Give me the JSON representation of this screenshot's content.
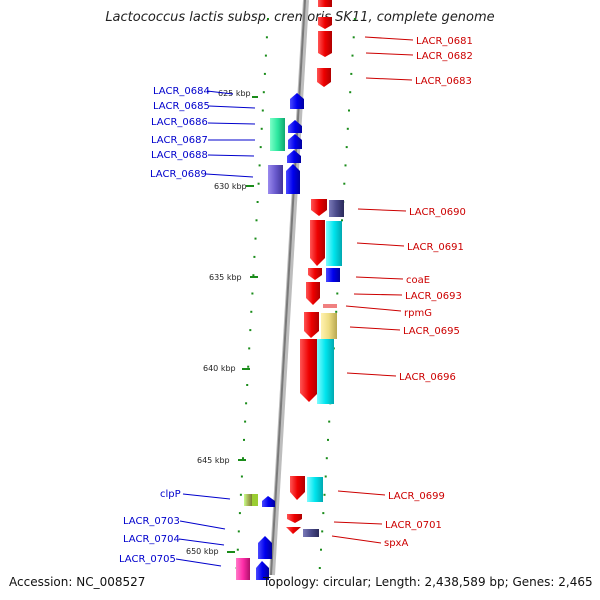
{
  "title": "Lactococcus lactis subsp. cremoris SK11, complete genome",
  "accession": "Accession: NC_008527",
  "topology": "Topology: circular; Length: 2,438,589 bp; Genes: 2,465",
  "colors": {
    "backbone": "#8c8c8c",
    "tick": "#1a8c1a",
    "forward": "#0000ee",
    "reverse": "#ee0000",
    "cyan": "#00e5ee",
    "green": "#2ee8a0",
    "purple": "#6a5acd",
    "navy": "#4a4a8a",
    "khaki": "#eedc82",
    "olive": "#a8b45a",
    "magenta": "#ff2ca8",
    "pink": "#f08080"
  },
  "kbp_labels": [
    "625 kbp",
    "630 kbp",
    "635 kbp",
    "640 kbp",
    "645 kbp",
    "650 kbp"
  ],
  "left_labels": [
    "LACR_0684",
    "LACR_0685",
    "LACR_0686",
    "LACR_0687",
    "LACR_0688",
    "LACR_0689",
    "clpP",
    "LACR_0703",
    "LACR_0704",
    "LACR_0705"
  ],
  "right_labels": [
    "LACR_0681",
    "LACR_0682",
    "LACR_0683",
    "LACR_0690",
    "LACR_0691",
    "coaE",
    "LACR_0693",
    "rpmG",
    "LACR_0695",
    "LACR_0696",
    "LACR_0699",
    "LACR_0701",
    "spxA"
  ]
}
